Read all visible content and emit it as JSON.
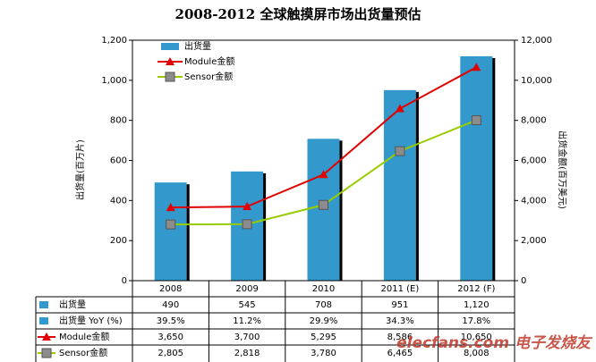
{
  "chart_data": {
    "type": "bar_line",
    "title": "2008-2012 全球触摸屏市场出货量预估",
    "ylabel": "出货量(百万片)",
    "y2label": "出货金额(百万美元)",
    "categories": [
      "2008",
      "2009",
      "2010",
      "2011 (E)",
      "2012 (F)"
    ],
    "ylim": [
      0,
      1200
    ],
    "yticks": [
      0,
      200,
      400,
      600,
      800,
      {
        "value": 1000,
        "label": "1,000"
      },
      {
        "value": 1200,
        "label": "1,200"
      }
    ],
    "y2lim": [
      0,
      12000
    ],
    "y2ticks": [
      0,
      {
        "value": 2000,
        "label": "2,000"
      },
      {
        "value": 4000,
        "label": "4,000"
      },
      {
        "value": 6000,
        "label": "6,000"
      },
      {
        "value": 8000,
        "label": "8,000"
      },
      {
        "value": 10000,
        "label": "10,000"
      },
      {
        "value": 12000,
        "label": "12,000"
      }
    ],
    "series": [
      {
        "name": "出货量",
        "type": "bar",
        "color": "#3399cc",
        "values": [
          490,
          545,
          708,
          951,
          1120
        ],
        "value_labels": [
          "490",
          "545",
          "708",
          "951",
          "1,120"
        ]
      },
      {
        "name": "Module金额",
        "type": "line",
        "axis": "y2",
        "color": "#e00000",
        "values": [
          3650,
          3700,
          5295,
          8586,
          10650
        ],
        "value_labels": [
          "3,650",
          "3,700",
          "5,295",
          "8,586",
          "10,650"
        ]
      },
      {
        "name": "Sensor金额",
        "type": "line",
        "axis": "y2",
        "color": "#99cc00",
        "values": [
          2805,
          2818,
          3780,
          6465,
          8008
        ],
        "value_labels": [
          "2,805",
          "2,818",
          "3,780",
          "6,465",
          "8,008"
        ]
      }
    ],
    "yoy_row": {
      "name": "出货量 YoY (%)",
      "value_labels": [
        "39.5%",
        "11.2%",
        "29.9%",
        "34.3%",
        "17.8%"
      ]
    },
    "watermark": "elecfans.com 电子发烧友"
  }
}
